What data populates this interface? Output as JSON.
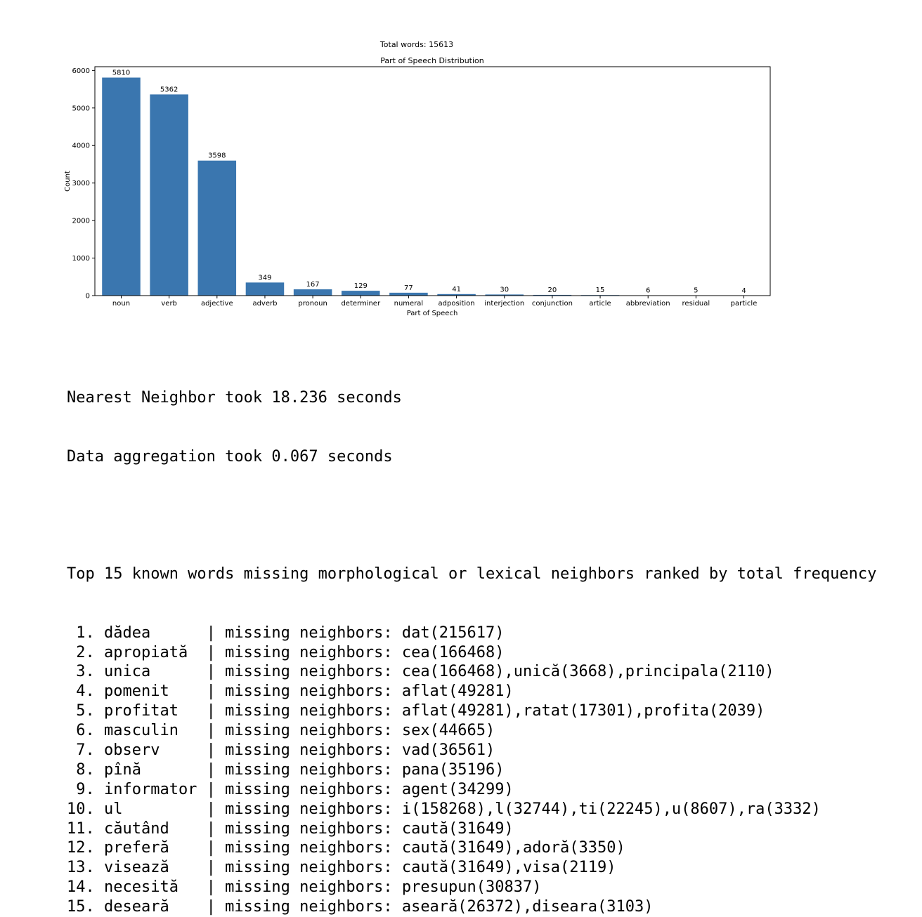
{
  "chart_data": {
    "type": "bar",
    "suptitle": "Total words: 15613",
    "title": "Part of Speech Distribution",
    "xlabel": "Part of Speech",
    "ylabel": "Count",
    "ylim": [
      0,
      6100
    ],
    "yticks": [
      0,
      1000,
      2000,
      3000,
      4000,
      5000,
      6000
    ],
    "categories": [
      "noun",
      "verb",
      "adjective",
      "adverb",
      "pronoun",
      "determiner",
      "numeral",
      "adposition",
      "interjection",
      "conjunction",
      "article",
      "abbreviation",
      "residual",
      "particle"
    ],
    "values": [
      5810,
      5362,
      3598,
      349,
      167,
      129,
      77,
      41,
      30,
      20,
      15,
      6,
      5,
      4
    ],
    "bar_color": "#3a76af",
    "grid": false
  },
  "output": {
    "timing": [
      "Nearest Neighbor took 18.236 seconds",
      "Data aggregation took 0.067 seconds"
    ],
    "heading": "Top 15 known words missing morphological or lexical neighbors ranked by total frequency",
    "rows": [
      " 1. dădea      | missing neighbors: dat(215617)",
      " 2. apropiată  | missing neighbors: cea(166468)",
      " 3. unica      | missing neighbors: cea(166468),unică(3668),principala(2110)",
      " 4. pomenit    | missing neighbors: aflat(49281)",
      " 5. profitat   | missing neighbors: aflat(49281),ratat(17301),profita(2039)",
      " 6. masculin   | missing neighbors: sex(44665)",
      " 7. observ     | missing neighbors: vad(36561)",
      " 8. pînă       | missing neighbors: pana(35196)",
      " 9. informator | missing neighbors: agent(34299)",
      "10. ul         | missing neighbors: i(158268),l(32744),ti(22245),u(8607),ra(3332)",
      "11. căutând    | missing neighbors: caută(31649)",
      "12. preferă    | missing neighbors: caută(31649),adoră(3350)",
      "13. visează    | missing neighbors: caută(31649),visa(2119)",
      "14. necesită   | missing neighbors: presupun(30837)",
      "15. deseară    | missing neighbors: aseară(26372),diseara(3103)"
    ]
  }
}
